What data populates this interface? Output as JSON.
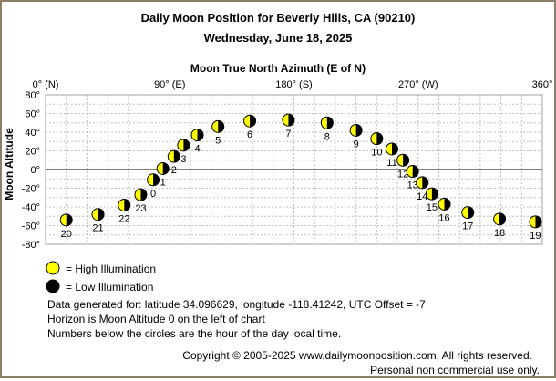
{
  "chart_data": {
    "type": "scatter",
    "title": "Daily Moon Position for Beverly Hills, CA (90210)",
    "subtitle": "Wednesday, June 18, 2025",
    "xlabel": "Moon True North Azimuth (E of N)",
    "ylabel": "Moon Altitude",
    "xlim": [
      0,
      360
    ],
    "ylim": [
      -80,
      80
    ],
    "x_ticks": [
      {
        "value": 0,
        "label": "0° (N)"
      },
      {
        "value": 90,
        "label": "90° (E)"
      },
      {
        "value": 180,
        "label": "180° (S)"
      },
      {
        "value": 270,
        "label": "270° (W)"
      },
      {
        "value": 360,
        "label": "360°"
      }
    ],
    "y_ticks": [
      {
        "value": 80,
        "label": "80°"
      },
      {
        "value": 60,
        "label": "60°"
      },
      {
        "value": 40,
        "label": "40°"
      },
      {
        "value": 20,
        "label": "20°"
      },
      {
        "value": 0,
        "label": "0°"
      },
      {
        "value": -20,
        "label": "-20°"
      },
      {
        "value": -40,
        "label": "-40°"
      },
      {
        "value": -60,
        "label": "-60°"
      },
      {
        "value": -80,
        "label": "-80°"
      }
    ],
    "grid": true,
    "illumination": "low",
    "points": [
      {
        "hour": "0",
        "x": 78,
        "y": -11
      },
      {
        "hour": "1",
        "x": 85,
        "y": 1
      },
      {
        "hour": "2",
        "x": 93,
        "y": 14
      },
      {
        "hour": "3",
        "x": 100,
        "y": 26
      },
      {
        "hour": "4",
        "x": 110,
        "y": 37
      },
      {
        "hour": "5",
        "x": 125,
        "y": 46
      },
      {
        "hour": "6",
        "x": 148,
        "y": 52
      },
      {
        "hour": "7",
        "x": 176,
        "y": 53
      },
      {
        "hour": "8",
        "x": 204,
        "y": 50
      },
      {
        "hour": "9",
        "x": 225,
        "y": 42
      },
      {
        "hour": "10",
        "x": 240,
        "y": 33
      },
      {
        "hour": "11",
        "x": 251,
        "y": 22
      },
      {
        "hour": "12",
        "x": 259,
        "y": 10
      },
      {
        "hour": "13",
        "x": 266,
        "y": -2
      },
      {
        "hour": "14",
        "x": 273,
        "y": -14
      },
      {
        "hour": "15",
        "x": 280,
        "y": -26
      },
      {
        "hour": "16",
        "x": 289,
        "y": -37
      },
      {
        "hour": "17",
        "x": 306,
        "y": -46
      },
      {
        "hour": "18",
        "x": 329,
        "y": -53
      },
      {
        "hour": "19",
        "x": 355,
        "y": -56
      },
      {
        "hour": "20",
        "x": 15,
        "y": -54
      },
      {
        "hour": "21",
        "x": 38,
        "y": -48
      },
      {
        "hour": "22",
        "x": 57,
        "y": -38
      },
      {
        "hour": "23",
        "x": 69,
        "y": -27
      }
    ]
  },
  "legend": {
    "high": "= High Illumination",
    "low": "= Low Illumination"
  },
  "info": {
    "line1": "Data generated for: latitude 34.096629, longitude -118.41242, UTC Offset = -7",
    "line2": "Horizon is Moon Altitude 0 on the left of chart",
    "line3": "Numbers below the circles are the hour of the day local time."
  },
  "footer": {
    "copyright": "Copyright © 2005-2025 www.dailymoonposition.com, All rights reserved.",
    "personal": "Personal non commercial use only."
  },
  "colors": {
    "high_illumination": "#ffff00",
    "low_illumination": "#000000",
    "grid": "#c0c0c0",
    "frame": "#8c7f67"
  }
}
